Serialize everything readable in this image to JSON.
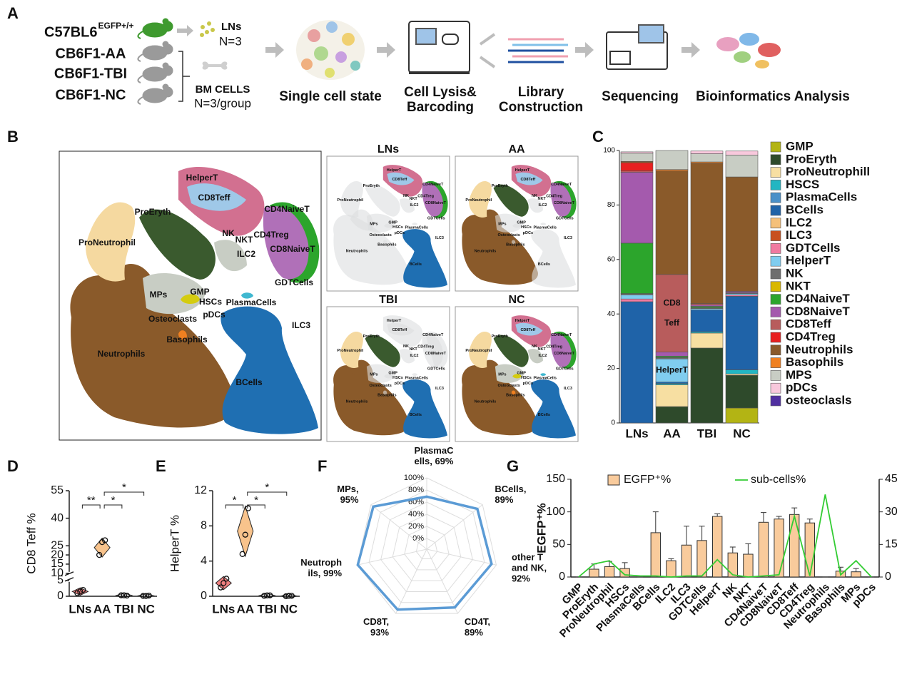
{
  "panel_labels": [
    "A",
    "B",
    "C",
    "D",
    "E",
    "F",
    "G"
  ],
  "workflow": {
    "strains": [
      "C57BL6",
      "CB6F1-AA",
      "CB6F1-TBI",
      "CB6F1-NC"
    ],
    "strain_superscript": "EGFP+/+",
    "lns": [
      "LNs",
      "N=3"
    ],
    "bm": [
      "BM CELLS",
      "N=3/group"
    ],
    "steps": [
      [
        "Single cell state"
      ],
      [
        "Cell Lysis&",
        "Barcoding"
      ],
      [
        "Library",
        "Construction"
      ],
      [
        "Sequencing"
      ],
      [
        "Bioinformatics Analysis"
      ]
    ]
  },
  "umap": {
    "labels": [
      "HelperT",
      "CD8Teff",
      "ProEryth",
      "CD4NaiveT",
      "NK",
      "NKT",
      "CD4Treg",
      "ProNeutrophil",
      "CD8NaiveT",
      "ILC2",
      "GDTCells",
      "MPs",
      "GMP",
      "HSCs",
      "PlasmaCells",
      "pDCs",
      "Osteoclasts",
      "ILC3",
      "Basophils",
      "Neutrophils",
      "BCells"
    ],
    "panels": [
      "LNs",
      "AA",
      "TBI",
      "NC"
    ]
  },
  "chart_data": [
    {
      "type": "stacked_bar",
      "categories": [
        "LNs",
        "AA",
        "TBI",
        "NC"
      ],
      "ylim": [
        0,
        100
      ],
      "yticks": [
        0,
        20,
        40,
        60,
        80,
        100
      ],
      "legend": "right",
      "series": [
        {
          "name": "GMP",
          "color": "#b3b414",
          "values": [
            0,
            0,
            0,
            5.5
          ]
        },
        {
          "name": "ProEryth",
          "color": "#2e4a2b",
          "values": [
            0,
            6,
            27.5,
            12
          ]
        },
        {
          "name": "ProNeutrophill",
          "color": "#f7dfa2",
          "values": [
            0,
            8,
            5.5,
            0.5
          ]
        },
        {
          "name": "HSCS",
          "color": "#22b6c2",
          "values": [
            0,
            0.5,
            0.5,
            1.5
          ]
        },
        {
          "name": "PlasmaCells",
          "color": "#4a90c8",
          "values": [
            0,
            0,
            0,
            0
          ]
        },
        {
          "name": "BCells",
          "color": "#1f63a8",
          "values": [
            44.5,
            0.5,
            8,
            27
          ]
        },
        {
          "name": "ILC2",
          "color": "#f5c07a",
          "values": [
            0,
            0,
            0,
            0
          ]
        },
        {
          "name": "ILC3",
          "color": "#c8501e",
          "values": [
            0,
            0,
            0,
            0
          ]
        },
        {
          "name": "GDTCells",
          "color": "#f07aa0",
          "values": [
            1,
            0,
            0,
            0.5
          ]
        },
        {
          "name": "HelperT",
          "color": "#80cdef",
          "values": [
            1.5,
            8.5,
            0.5,
            0.5
          ]
        },
        {
          "name": "NK",
          "color": "#6e6e6e",
          "values": [
            0.5,
            0.5,
            0.3,
            0.3
          ]
        },
        {
          "name": "NKT",
          "color": "#d9b800",
          "values": [
            0,
            0,
            0,
            0
          ]
        },
        {
          "name": "CD4NaiveT",
          "color": "#2ca52c",
          "values": [
            18.5,
            0.5,
            0.5,
            0
          ]
        },
        {
          "name": "CD8NaiveT",
          "color": "#a45aad",
          "values": [
            26,
            1.5,
            0.5,
            0.5
          ]
        },
        {
          "name": "CD8Teff",
          "color": "#b85c5c",
          "values": [
            0.5,
            28.5,
            0.5,
            0
          ]
        },
        {
          "name": "CD4Treg",
          "color": "#e82020",
          "values": [
            3,
            0,
            0,
            0
          ]
        },
        {
          "name": "Neutrophils",
          "color": "#8a5a2a",
          "values": [
            0.5,
            38,
            51.5,
            42
          ]
        },
        {
          "name": "Basophils",
          "color": "#f08020",
          "values": [
            0,
            0.5,
            0.5,
            0
          ]
        },
        {
          "name": "MPS",
          "color": "#c8cdc4",
          "values": [
            3,
            7,
            3,
            8
          ]
        },
        {
          "name": "pDCs",
          "color": "#f8c8dc",
          "values": [
            0.5,
            0,
            1,
            1.5
          ]
        },
        {
          "name": "osteoclasls",
          "color": "#5030a0",
          "values": [
            0,
            0,
            0,
            0
          ]
        }
      ],
      "annotations": [
        {
          "category": "AA",
          "series": "CD8Teff",
          "text": [
            "CD8",
            "Teff"
          ]
        },
        {
          "category": "AA",
          "series": "HelperT",
          "text": [
            "HelperT"
          ]
        }
      ]
    },
    {
      "type": "violin",
      "categories": [
        "LNs",
        "AA",
        "TBI",
        "NC"
      ],
      "ylabel": "CD8 Teff %",
      "ylim": [
        0,
        55
      ],
      "ybreak": [
        5,
        10
      ],
      "yticks": [
        0,
        5,
        10,
        15,
        20,
        25,
        40,
        55
      ],
      "colors": [
        "#f08080",
        "#f8c38c",
        "none",
        "none"
      ],
      "points": [
        [
          1,
          1.5,
          2
        ],
        [
          20,
          27,
          28
        ],
        [
          0.3,
          0.3,
          0.2
        ],
        [
          0.1,
          0.1,
          0.2
        ]
      ],
      "significance": [
        {
          "groups": [
            "AA",
            "NC"
          ],
          "text": "*"
        },
        {
          "groups": [
            "LNs",
            "AA"
          ],
          "text": "**"
        },
        {
          "groups": [
            "AA",
            "TBI"
          ],
          "text": "*"
        }
      ]
    },
    {
      "type": "violin",
      "categories": [
        "LNs",
        "AA",
        "TBI",
        "NC"
      ],
      "ylabel": "HelperT %",
      "ylim": [
        0,
        12
      ],
      "yticks": [
        0,
        4,
        8,
        12
      ],
      "colors": [
        "#f08080",
        "#f8c38c",
        "none",
        "none"
      ],
      "points": [
        [
          1,
          1.5,
          2
        ],
        [
          4.8,
          7,
          10
        ],
        [
          0.05,
          0.1,
          0.1
        ],
        [
          0,
          0.05,
          0.05
        ]
      ],
      "significance": [
        {
          "groups": [
            "AA",
            "NC"
          ],
          "text": "*"
        },
        {
          "groups": [
            "LNs",
            "AA"
          ],
          "text": "*"
        },
        {
          "groups": [
            "AA",
            "TBI"
          ],
          "text": "*"
        }
      ]
    },
    {
      "type": "radar",
      "categories": [
        [
          "PlasmaC",
          "ells, 69%"
        ],
        [
          "BCells,",
          "89%"
        ],
        [
          "other T",
          "and NK,",
          "92%"
        ],
        [
          "CD4T,",
          "89%"
        ],
        [
          "CD8T,",
          "93%"
        ],
        [
          "Neutroph",
          "ils, 99%"
        ],
        [
          "MPs,",
          "95%"
        ]
      ],
      "values": [
        69,
        89,
        92,
        89,
        93,
        99,
        95
      ],
      "color": "#5b9bd5",
      "rlim": [
        0,
        100
      ],
      "rticks": [
        {
          "value": 0,
          "label": "0%"
        },
        {
          "value": 20,
          "label": "20%"
        },
        {
          "value": 40,
          "label": "40%"
        },
        {
          "value": 60,
          "label": "60%"
        },
        {
          "value": 80,
          "label": "80%"
        },
        {
          "value": 100,
          "label": "100%"
        }
      ]
    },
    {
      "type": "combo",
      "categories": [
        "GMP",
        "ProEryth",
        "ProNeutrophil",
        "HSCs",
        "PlasmaCells",
        "BCells",
        "ILC2",
        "ILC3",
        "GDTCells",
        "HelperT",
        "NK",
        "NKT",
        "CD4NaiveT",
        "CD8NaiveT",
        "CD8Teff",
        "CD4Treg",
        "Neutrophils",
        "Basophils",
        "MPs",
        "pDCs"
      ],
      "ylabel": "EGFP⁺%",
      "ylim": [
        0,
        150
      ],
      "yticks": [
        0,
        50,
        100,
        150
      ],
      "y2lim": [
        0,
        45
      ],
      "y2ticks": [
        0,
        15,
        30,
        45
      ],
      "legend": "top",
      "series": [
        {
          "name": "EGFP⁺%",
          "style": "bar",
          "color": "#f9cb9c",
          "values": [
            0,
            12,
            16,
            13,
            0,
            68,
            25,
            49,
            56,
            93,
            37,
            35,
            84,
            89,
            96,
            83,
            0,
            9,
            8,
            0
          ],
          "errors": [
            0,
            8,
            8,
            9,
            0,
            32,
            3,
            29,
            22,
            4,
            9,
            16,
            15,
            4,
            10,
            6,
            0,
            6,
            5,
            0
          ]
        },
        {
          "name": "sub-cells%",
          "style": "line",
          "axis": "y2",
          "color": "#33cc33",
          "values": [
            0,
            6,
            7.5,
            1,
            0.5,
            0.5,
            0,
            0.5,
            0.5,
            8,
            1,
            0,
            0.5,
            1,
            28,
            0.5,
            38,
            1,
            7.5,
            0
          ]
        }
      ]
    }
  ]
}
